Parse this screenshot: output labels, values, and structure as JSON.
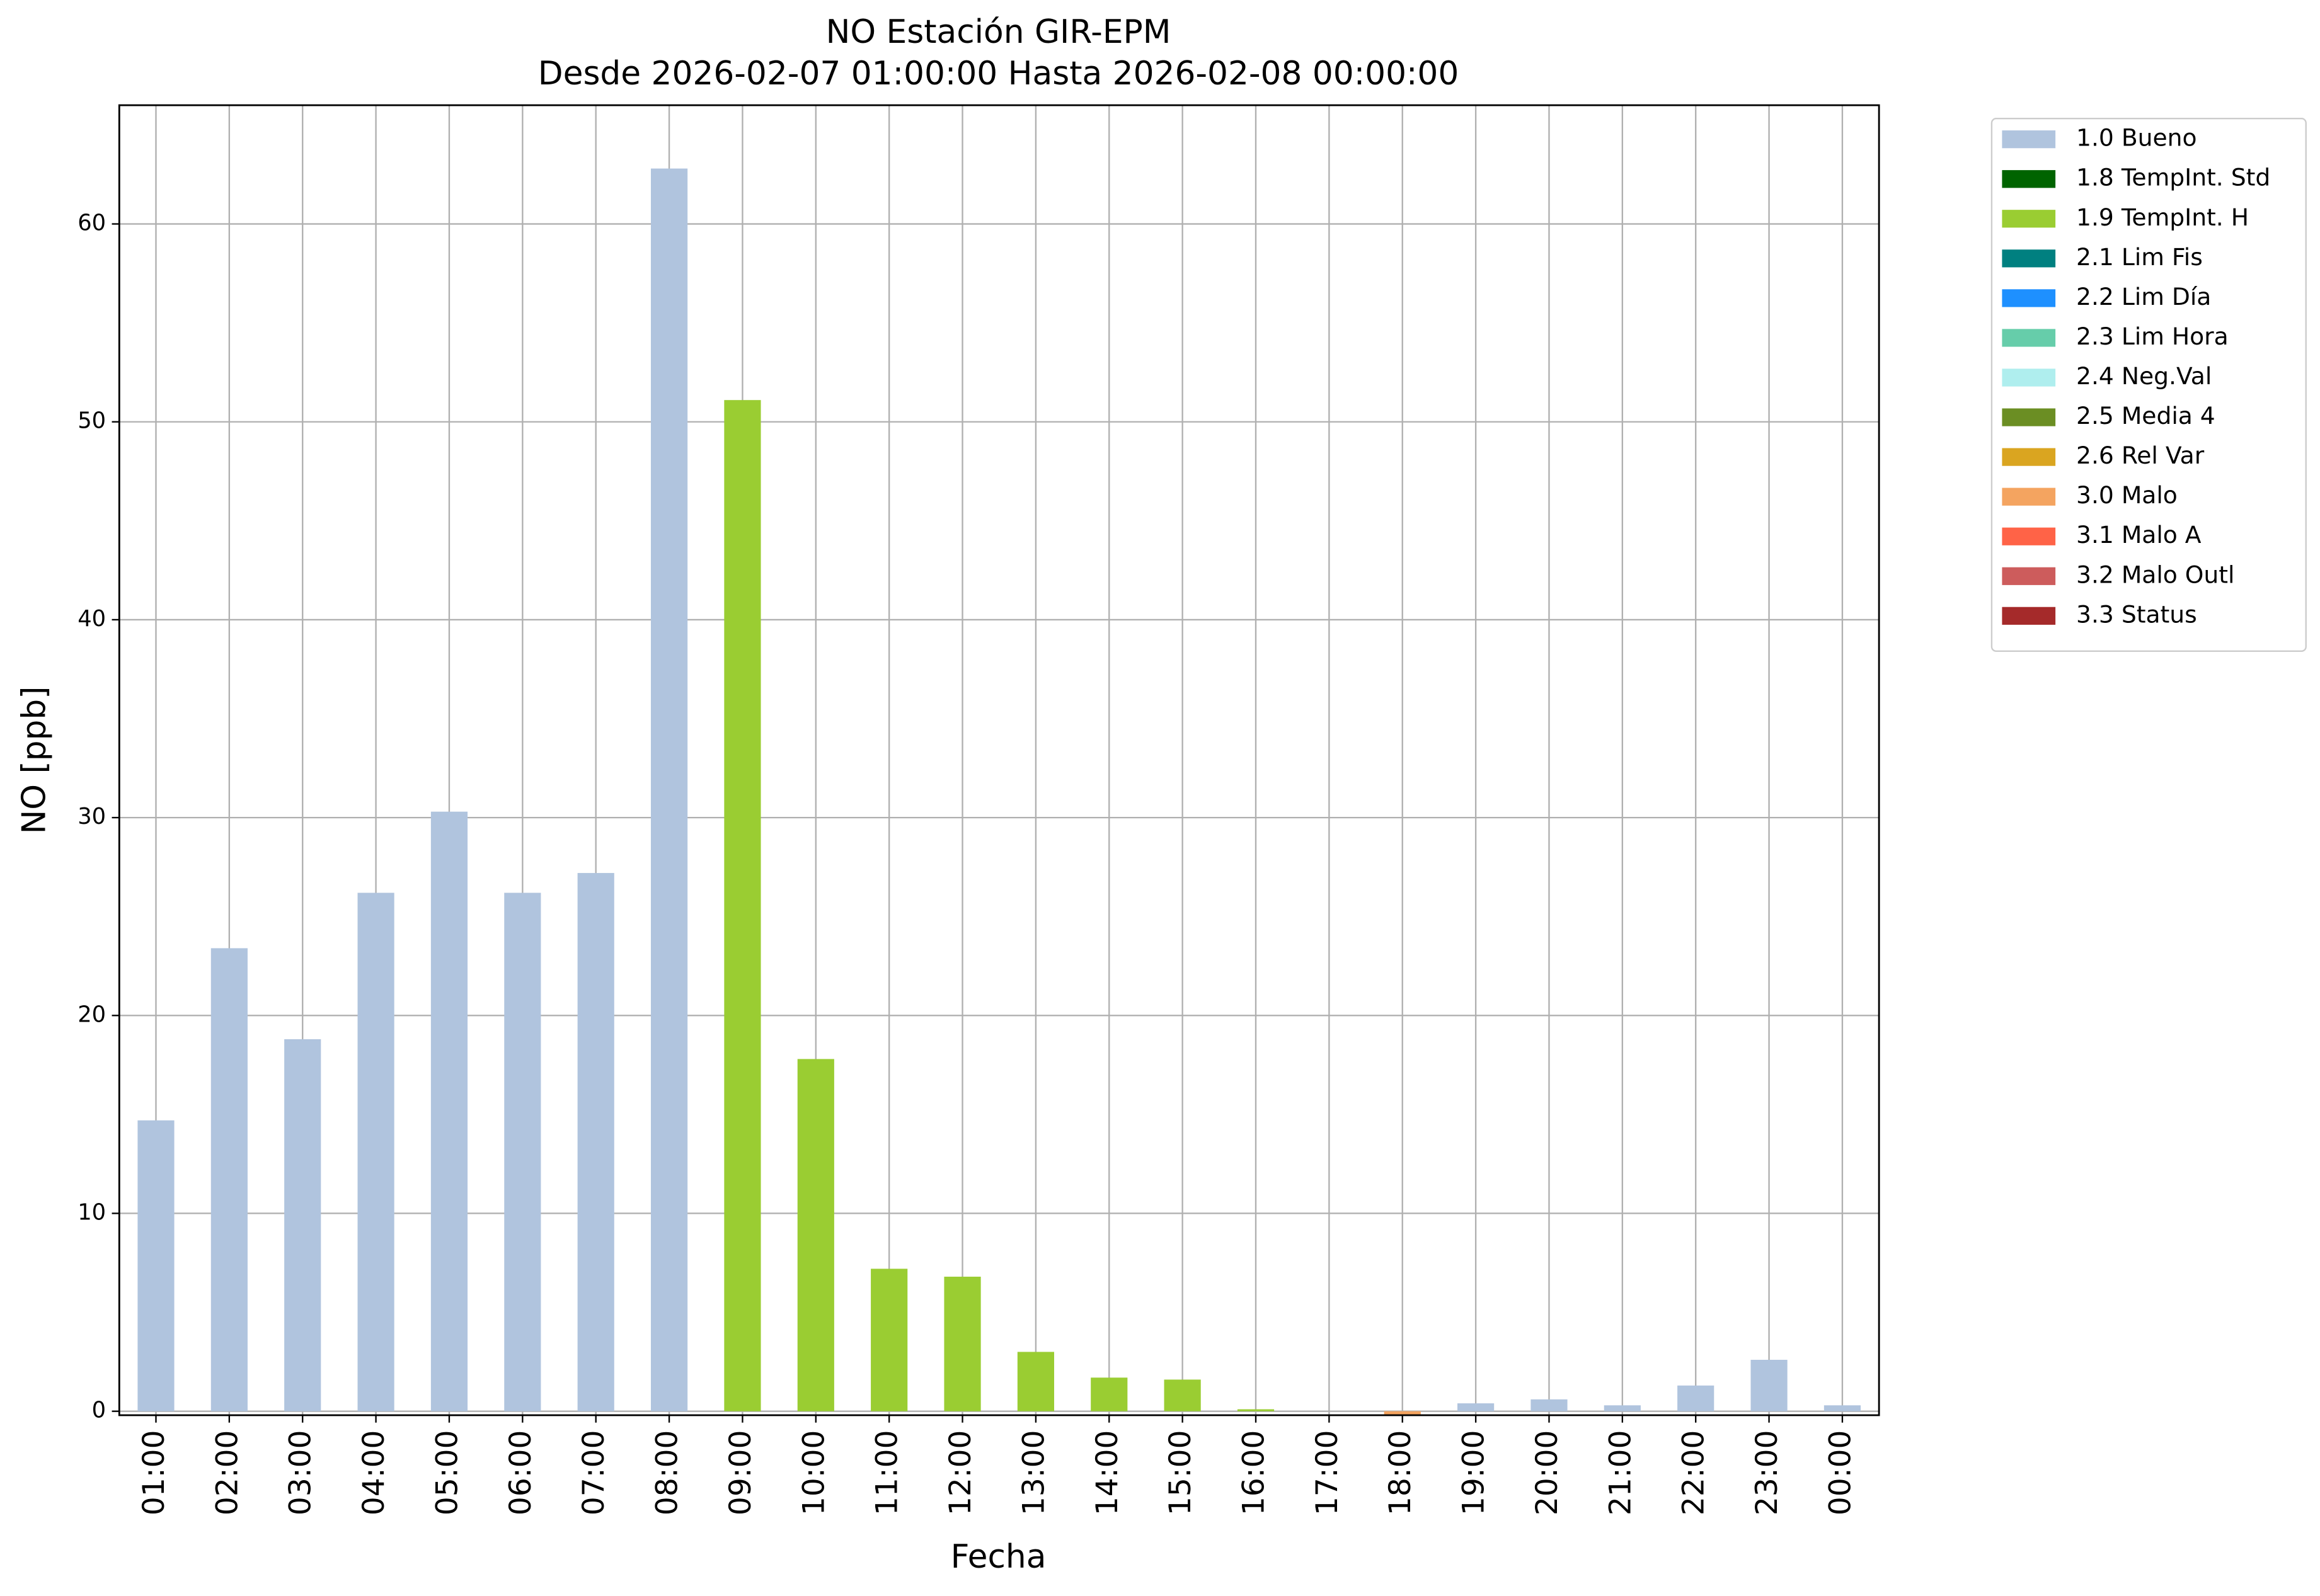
{
  "chart_data": {
    "type": "stacked_bar",
    "title": "NO Estación GIR-EPM",
    "subtitle": "Desde 2026-02-07 01:00:00 Hasta 2026-02-08 00:00:00",
    "x_label": "Fecha",
    "y_label": "NO [ppb]",
    "categories": [
      "01:00",
      "02:00",
      "03:00",
      "04:00",
      "05:00",
      "06:00",
      "07:00",
      "08:00",
      "09:00",
      "10:00",
      "11:00",
      "12:00",
      "13:00",
      "14:00",
      "15:00",
      "16:00",
      "17:00",
      "18:00",
      "19:00",
      "20:00",
      "21:00",
      "22:00",
      "23:00",
      "00:00"
    ],
    "series": [
      {
        "name": "1.0 Bueno",
        "color": "#b0c4de",
        "values": [
          14.7,
          23.4,
          18.8,
          26.2,
          30.3,
          26.2,
          27.2,
          62.8,
          0,
          0,
          0,
          0,
          0,
          0,
          0,
          0,
          0,
          0,
          0.4,
          0.6,
          0.3,
          1.3,
          2.6,
          0.3
        ]
      },
      {
        "name": "1.8 TempInt. Std",
        "color": "#006400",
        "values": [
          0,
          0,
          0,
          0,
          0,
          0,
          0,
          0,
          0,
          0,
          0,
          0,
          0,
          0,
          0,
          0,
          0,
          0,
          0,
          0,
          0,
          0,
          0,
          0
        ]
      },
      {
        "name": "1.9 TempInt. H",
        "color": "#9acd32",
        "values": [
          0,
          0,
          0,
          0,
          0,
          0,
          0,
          0,
          51.1,
          17.8,
          7.2,
          6.8,
          3.0,
          1.7,
          1.6,
          0.1,
          0,
          0,
          0,
          0,
          0,
          0,
          0,
          0
        ]
      },
      {
        "name": "2.1 Lim Fis",
        "color": "#008080",
        "values": [
          0,
          0,
          0,
          0,
          0,
          0,
          0,
          0,
          0,
          0,
          0,
          0,
          0,
          0,
          0,
          0,
          0,
          0,
          0,
          0,
          0,
          0,
          0,
          0
        ]
      },
      {
        "name": "2.2 Lim Día",
        "color": "#1e90ff",
        "values": [
          0,
          0,
          0,
          0,
          0,
          0,
          0,
          0,
          0,
          0,
          0,
          0,
          0,
          0,
          0,
          0,
          0,
          0,
          0,
          0,
          0,
          0,
          0,
          0
        ]
      },
      {
        "name": "2.3 Lim Hora",
        "color": "#66cdaa",
        "values": [
          0,
          0,
          0,
          0,
          0,
          0,
          0,
          0,
          0,
          0,
          0,
          0,
          0,
          0,
          0,
          0,
          0,
          0,
          0,
          0,
          0,
          0,
          0,
          0
        ]
      },
      {
        "name": "2.4 Neg.Val",
        "color": "#afeeee",
        "values": [
          0,
          0,
          0,
          0,
          0,
          0,
          0,
          0,
          0,
          0,
          0,
          0,
          0,
          0,
          0,
          0,
          0,
          0,
          0,
          0,
          0,
          0,
          0,
          0
        ]
      },
      {
        "name": "2.5 Media 4",
        "color": "#6b8e23",
        "values": [
          0,
          0,
          0,
          0,
          0,
          0,
          0,
          0,
          0,
          0,
          0,
          0,
          0,
          0,
          0,
          0,
          0,
          0,
          0,
          0,
          0,
          0,
          0,
          0
        ]
      },
      {
        "name": "2.6 Rel Var",
        "color": "#daa520",
        "values": [
          0,
          0,
          0,
          0,
          0,
          0,
          0,
          0,
          0,
          0,
          0,
          0,
          0,
          0,
          0,
          0,
          0,
          0,
          0,
          0,
          0,
          0,
          0,
          0
        ]
      },
      {
        "name": "3.0 Malo",
        "color": "#f4a460",
        "values": [
          0,
          0,
          0,
          0,
          0,
          0,
          0,
          0,
          0,
          0,
          0,
          0,
          0,
          0,
          0,
          0,
          0,
          -0.2,
          0,
          0,
          0,
          0,
          0,
          0
        ]
      },
      {
        "name": "3.1 Malo A",
        "color": "#ff6347",
        "values": [
          0,
          0,
          0,
          0,
          0,
          0,
          0,
          0,
          0,
          0,
          0,
          0,
          0,
          0,
          0,
          0,
          0,
          0,
          0,
          0,
          0,
          0,
          0,
          0
        ]
      },
      {
        "name": "3.2 Malo Outl",
        "color": "#cd5c5c",
        "values": [
          0,
          0,
          0,
          0,
          0,
          0,
          0,
          0,
          0,
          0,
          0,
          0,
          0,
          0,
          0,
          0,
          0,
          0,
          0,
          0,
          0,
          0,
          0,
          0
        ]
      },
      {
        "name": "3.3 Status",
        "color": "#a52a2a",
        "values": [
          0,
          0,
          0,
          0,
          0,
          0,
          0,
          0,
          0,
          0,
          0,
          0,
          0,
          0,
          0,
          0,
          0,
          0,
          0,
          0,
          0,
          0,
          0,
          0
        ]
      }
    ],
    "ylim": [
      -0.2,
      66
    ],
    "yticks": [
      0,
      10,
      20,
      30,
      40,
      50,
      60
    ],
    "grid": true,
    "legend": "outside-upper-right"
  }
}
